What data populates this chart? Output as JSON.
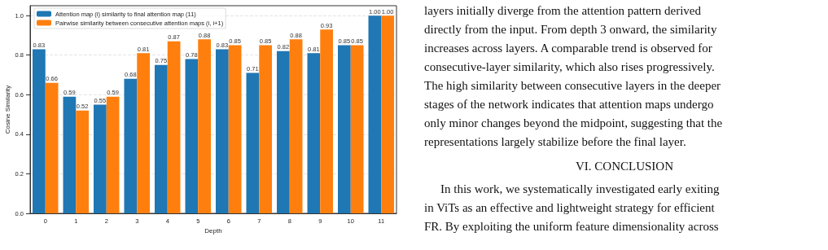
{
  "chart_data": {
    "type": "bar",
    "xlabel": "Depth",
    "ylabel": "Cosine Similarity",
    "categories": [
      "0",
      "1",
      "2",
      "3",
      "4",
      "5",
      "6",
      "7",
      "8",
      "9",
      "10",
      "11"
    ],
    "series": [
      {
        "name": "Attention map (i) similarity to final attention map (11)",
        "color": "#1f77b4",
        "values": [
          0.83,
          0.59,
          0.55,
          0.68,
          0.75,
          0.78,
          0.83,
          0.71,
          0.82,
          0.81,
          0.85,
          1.0
        ],
        "value_labels": [
          "0.83",
          "0.59",
          "0.55",
          "0.68",
          "0.75",
          "0.78",
          "0.83",
          "0.71",
          "0.82",
          "0.81",
          "0.85",
          "1.00"
        ]
      },
      {
        "name": "Pairwise similarity between consecutive attention maps (i, i+1)",
        "color": "#ff7f0e",
        "values": [
          0.66,
          0.52,
          0.59,
          0.81,
          0.87,
          0.88,
          0.85,
          0.85,
          0.88,
          0.93,
          0.85,
          1.0
        ],
        "value_labels": [
          "0.66",
          "0.52",
          "0.59",
          "0.81",
          "0.87",
          "0.88",
          "0.85",
          "0.85",
          "0.88",
          "0.93",
          "0.85",
          "1.00"
        ]
      }
    ],
    "ylim": [
      0,
      1.05
    ],
    "yticks": [
      {
        "value": 0,
        "label": "0.0"
      },
      0.2,
      0.4,
      0.6,
      0.8,
      {
        "value": 1,
        "label": "1.0"
      }
    ],
    "grid": "y",
    "legend": "top left",
    "annotations": [
      "layers initially diverge from the attention pattern derived",
      "directly from the input. From depth 3 onward, the similarity",
      "increases across layers. A comparable trend is observed for",
      "consecutive-layer similarity, which also rises progressively.",
      "The high similarity between consecutive layers in the deeper",
      "stages of the network indicates that attention maps undergo",
      "only minor changes beyond the midpoint, suggesting that the",
      "representations largely stabilize before the final layer.",
      "VI. CONCLUSION",
      "In this work, we systematically investigated early exiting",
      "in ViTs as an effective and lightweight strategy for efficient",
      "FR. By exploiting the uniform feature dimensionality across"
    ]
  }
}
